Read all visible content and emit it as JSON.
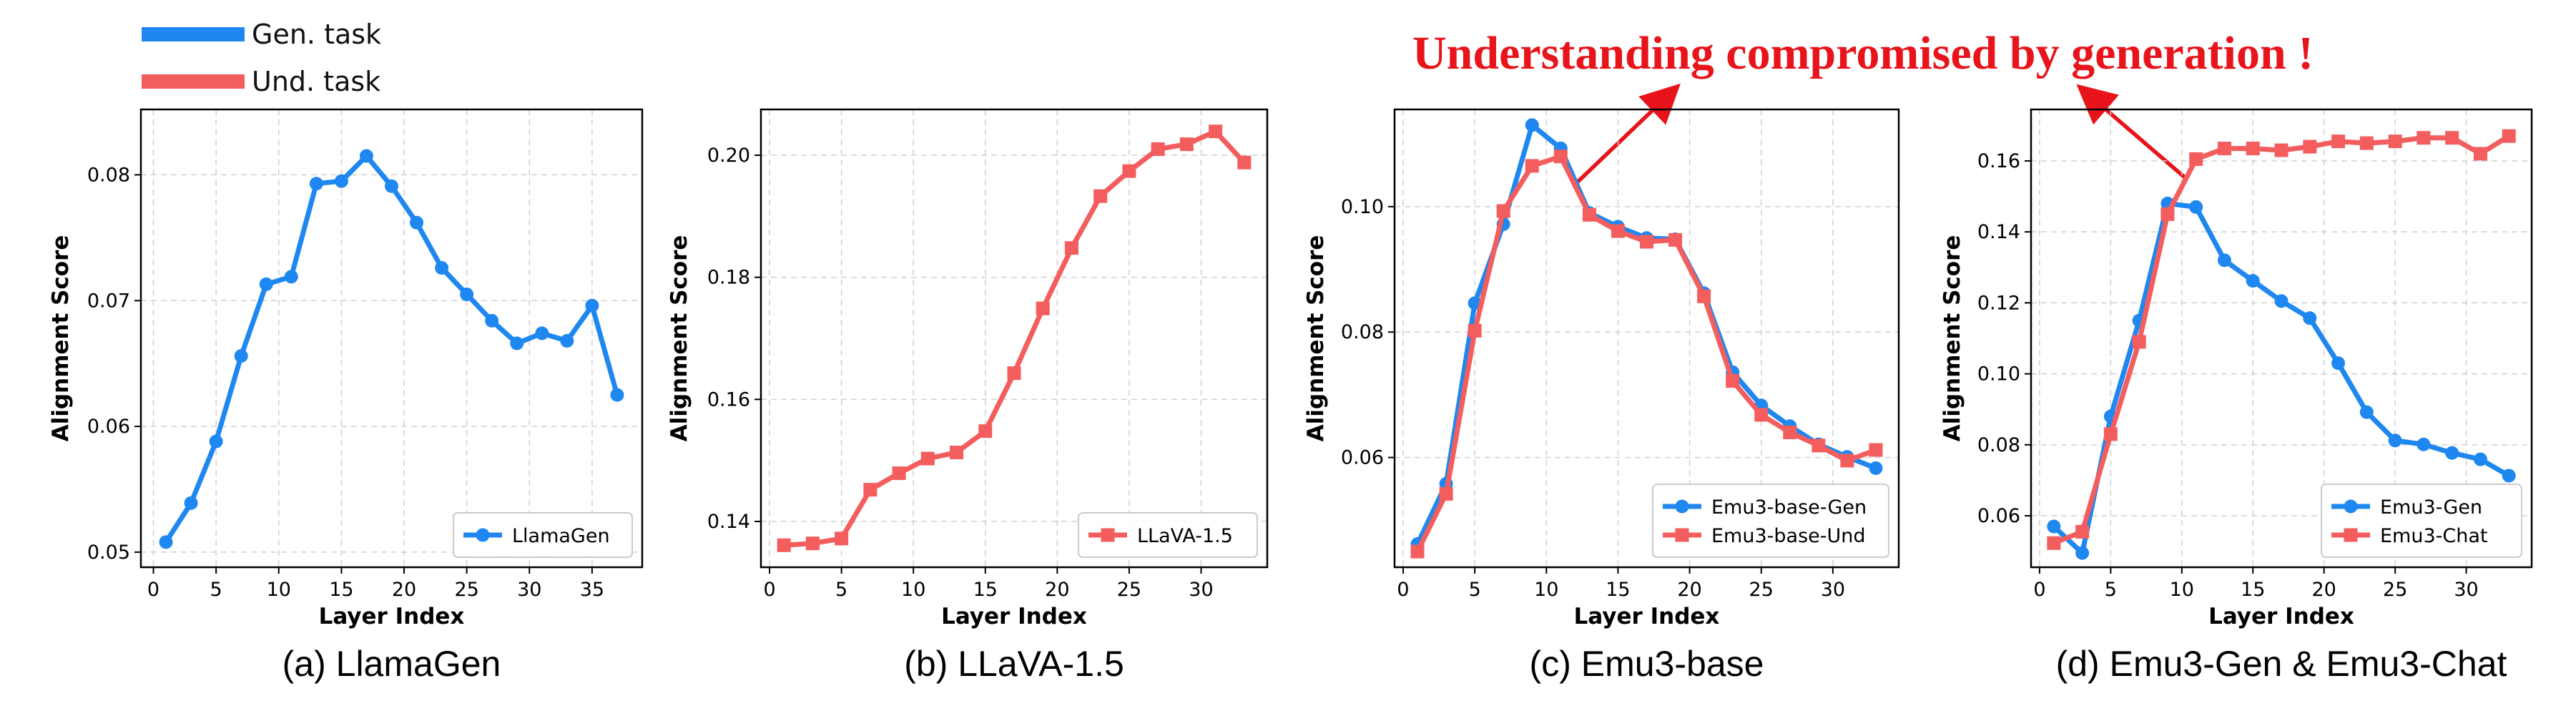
{
  "colors": {
    "gen": "#1f87f0",
    "und": "#f45d5d",
    "headline": "#e8141b",
    "arrow": "#e8141b"
  },
  "top_legend": [
    {
      "label": "Gen. task",
      "color": "#1f87f0"
    },
    {
      "label": "Und. task",
      "color": "#f45d5d"
    }
  ],
  "headline": "Understanding compromised by generation !",
  "chart_data": [
    {
      "type": "line",
      "caption": "(a) LlamaGen",
      "xlabel": "Layer Index",
      "ylabel": "Alignment Score",
      "xlim": [
        -1,
        39
      ],
      "ylim": [
        0.0488,
        0.0852
      ],
      "xticks": [
        0,
        5,
        10,
        15,
        20,
        25,
        30,
        35
      ],
      "yticks": [
        0.05,
        0.06,
        0.07,
        0.08
      ],
      "ytick_labels": [
        "0.05",
        "0.06",
        "0.07",
        "0.08"
      ],
      "legend_position": "lower-right",
      "series": [
        {
          "name": "LlamaGen",
          "color": "#1f87f0",
          "marker": "circle",
          "x": [
            1,
            3,
            5,
            7,
            9,
            11,
            13,
            15,
            17,
            19,
            21,
            23,
            25,
            27,
            29,
            31,
            33,
            35,
            37
          ],
          "y": [
            0.0508,
            0.0539,
            0.0588,
            0.0656,
            0.0713,
            0.0719,
            0.0793,
            0.0795,
            0.0815,
            0.0791,
            0.0762,
            0.0726,
            0.0705,
            0.0684,
            0.0666,
            0.0674,
            0.0668,
            0.0696,
            0.0625
          ]
        }
      ]
    },
    {
      "type": "line",
      "caption": "(b) LLaVA-1.5",
      "xlabel": "Layer Index",
      "ylabel": "Alignment Score",
      "xlim": [
        -0.6,
        34.6
      ],
      "ylim": [
        0.1325,
        0.2075
      ],
      "xticks": [
        0,
        5,
        10,
        15,
        20,
        25,
        30
      ],
      "yticks": [
        0.14,
        0.16,
        0.18,
        0.2
      ],
      "ytick_labels": [
        "0.14",
        "0.16",
        "0.18",
        "0.20"
      ],
      "legend_position": "lower-right",
      "series": [
        {
          "name": "LLaVA-1.5",
          "color": "#f45d5d",
          "marker": "square",
          "x": [
            1,
            3,
            5,
            7,
            9,
            11,
            13,
            15,
            17,
            19,
            21,
            23,
            25,
            27,
            29,
            31,
            33
          ],
          "y": [
            0.1361,
            0.1364,
            0.1372,
            0.1452,
            0.1479,
            0.1503,
            0.1513,
            0.1548,
            0.1643,
            0.1749,
            0.1848,
            0.1933,
            0.1974,
            0.201,
            0.2018,
            0.2039,
            0.1988
          ]
        }
      ]
    },
    {
      "type": "line",
      "caption": "(c) Emu3-base",
      "xlabel": "Layer Index",
      "ylabel": "Alignment Score",
      "xlim": [
        -0.6,
        34.6
      ],
      "ylim": [
        0.0425,
        0.1155
      ],
      "xticks": [
        0,
        5,
        10,
        15,
        20,
        25,
        30
      ],
      "yticks": [
        0.06,
        0.08,
        0.1
      ],
      "ytick_labels": [
        "0.06",
        "0.08",
        "0.10"
      ],
      "legend_position": "lower-right",
      "series": [
        {
          "name": "Emu3-base-Gen",
          "color": "#1f87f0",
          "marker": "circle",
          "x": [
            1,
            3,
            5,
            7,
            9,
            11,
            13,
            15,
            17,
            19,
            21,
            23,
            25,
            27,
            29,
            31,
            33
          ],
          "y": [
            0.0462,
            0.0558,
            0.0846,
            0.0972,
            0.113,
            0.1093,
            0.099,
            0.0968,
            0.095,
            0.0948,
            0.0862,
            0.0736,
            0.0683,
            0.065,
            0.0621,
            0.0601,
            0.0583
          ]
        },
        {
          "name": "Emu3-base-Und",
          "color": "#f45d5d",
          "marker": "square",
          "x": [
            1,
            3,
            5,
            7,
            9,
            11,
            13,
            15,
            17,
            19,
            21,
            23,
            25,
            27,
            29,
            31,
            33
          ],
          "y": [
            0.045,
            0.0542,
            0.0802,
            0.0993,
            0.1065,
            0.108,
            0.0987,
            0.0961,
            0.0944,
            0.0947,
            0.0857,
            0.0722,
            0.0668,
            0.064,
            0.0619,
            0.0595,
            0.0612
          ]
        }
      ]
    },
    {
      "type": "line",
      "caption": "(d) Emu3-Gen & Emu3-Chat",
      "xlabel": "Layer Index",
      "ylabel": "Alignment Score",
      "xlim": [
        -0.6,
        34.6
      ],
      "ylim": [
        0.0455,
        0.1745
      ],
      "xticks": [
        0,
        5,
        10,
        15,
        20,
        25,
        30
      ],
      "yticks": [
        0.06,
        0.08,
        0.1,
        0.12,
        0.14,
        0.16
      ],
      "ytick_labels": [
        "0.06",
        "0.08",
        "0.10",
        "0.12",
        "0.14",
        "0.16"
      ],
      "legend_position": "lower-right",
      "series": [
        {
          "name": "Emu3-Gen",
          "color": "#1f87f0",
          "marker": "circle",
          "x": [
            1,
            3,
            5,
            7,
            9,
            11,
            13,
            15,
            17,
            19,
            21,
            23,
            25,
            27,
            29,
            31,
            33
          ],
          "y": [
            0.057,
            0.0495,
            0.088,
            0.115,
            0.148,
            0.147,
            0.132,
            0.1262,
            0.1205,
            0.1157,
            0.103,
            0.0892,
            0.0812,
            0.0801,
            0.0777,
            0.0759,
            0.0713
          ]
        },
        {
          "name": "Emu3-Chat",
          "color": "#f45d5d",
          "marker": "square",
          "x": [
            1,
            3,
            5,
            7,
            9,
            11,
            13,
            15,
            17,
            19,
            21,
            23,
            25,
            27,
            29,
            31,
            33
          ],
          "y": [
            0.0523,
            0.0555,
            0.083,
            0.109,
            0.145,
            0.1605,
            0.1635,
            0.1635,
            0.163,
            0.164,
            0.1655,
            0.165,
            0.1655,
            0.1665,
            0.1665,
            0.162,
            0.167
          ]
        }
      ]
    }
  ]
}
